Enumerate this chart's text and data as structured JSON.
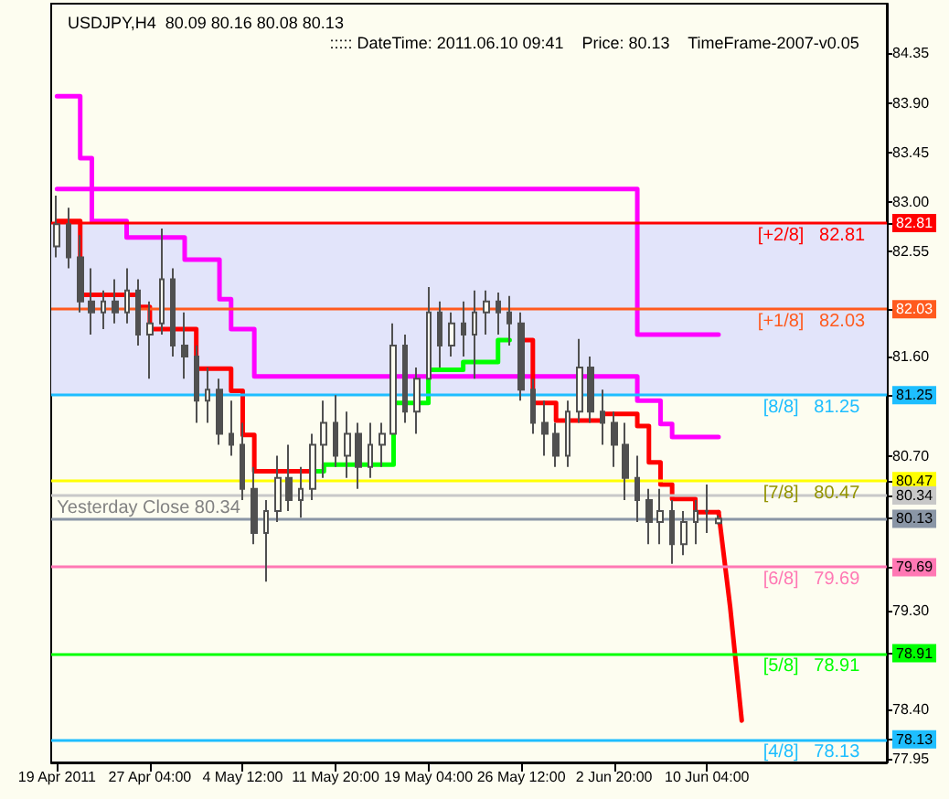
{
  "chart_data": {
    "type": "candlestick",
    "title": "USDJPY,H4  80.09 80.16 80.08 80.13",
    "subtitle": "::::: DateTime: 2011.06.10 09:41    Price: 80.13    TimeFrame-2007-v0.05",
    "categories": [
      "19 Apr 2011",
      null,
      null,
      null,
      null,
      null,
      null,
      null,
      "27 Apr 04:00",
      null,
      null,
      null,
      null,
      null,
      null,
      null,
      "4 May 12:00",
      null,
      null,
      null,
      null,
      null,
      null,
      null,
      "11 May 20:00",
      null,
      null,
      null,
      null,
      null,
      null,
      null,
      "19 May 04:00",
      null,
      null,
      null,
      null,
      null,
      null,
      null,
      "26 May 12:00",
      null,
      null,
      null,
      null,
      null,
      null,
      null,
      "2 Jun 20:00",
      null,
      null,
      null,
      null,
      null,
      null,
      null,
      "10 Jun 04:00",
      null,
      null,
      null,
      null,
      null,
      null,
      null,
      null,
      null,
      null,
      null,
      null,
      null,
      null,
      null
    ],
    "color": "#505050",
    "ohlc": [
      [
        82.6,
        83.06,
        82.5,
        82.8
      ],
      [
        82.8,
        82.95,
        82.4,
        82.5
      ],
      [
        82.5,
        82.7,
        82.0,
        82.1
      ],
      [
        82.1,
        82.4,
        81.8,
        82.0
      ],
      [
        82.0,
        82.2,
        81.85,
        82.1
      ],
      [
        82.1,
        82.3,
        81.9,
        82.0
      ],
      [
        82.0,
        82.4,
        81.9,
        82.2
      ],
      [
        82.2,
        82.3,
        81.7,
        81.8
      ],
      [
        81.8,
        82.1,
        81.4,
        81.9
      ],
      [
        81.9,
        82.76,
        81.8,
        82.3
      ],
      [
        82.3,
        82.4,
        81.6,
        81.7
      ],
      [
        81.7,
        82.0,
        81.4,
        81.6
      ],
      [
        81.6,
        81.7,
        81.0,
        81.2
      ],
      [
        81.2,
        81.5,
        81.0,
        81.3
      ],
      [
        81.3,
        81.4,
        80.8,
        80.9
      ],
      [
        80.9,
        81.2,
        80.7,
        80.8
      ],
      [
        80.8,
        81.0,
        80.3,
        80.4
      ],
      [
        80.4,
        80.6,
        79.9,
        80.0
      ],
      [
        80.0,
        80.3,
        79.56,
        80.2
      ],
      [
        80.2,
        80.7,
        80.1,
        80.5
      ],
      [
        80.5,
        80.8,
        80.2,
        80.3
      ],
      [
        80.3,
        80.6,
        80.14,
        80.4
      ],
      [
        80.4,
        80.9,
        80.3,
        80.8
      ],
      [
        80.8,
        81.2,
        80.5,
        81.0
      ],
      [
        81.0,
        81.25,
        80.6,
        80.7
      ],
      [
        80.7,
        81.1,
        80.5,
        80.9
      ],
      [
        80.9,
        81.0,
        80.4,
        80.6
      ],
      [
        80.6,
        81.0,
        80.5,
        80.8
      ],
      [
        80.8,
        81.0,
        80.6,
        80.9
      ],
      [
        80.9,
        81.9,
        80.9,
        81.7
      ],
      [
        81.7,
        81.8,
        81.0,
        81.1
      ],
      [
        81.1,
        81.5,
        80.9,
        81.4
      ],
      [
        81.4,
        82.23,
        81.4,
        82.0
      ],
      [
        82.0,
        82.1,
        81.5,
        81.7
      ],
      [
        81.7,
        82.0,
        81.6,
        81.9
      ],
      [
        81.9,
        82.1,
        81.6,
        81.8
      ],
      [
        81.8,
        82.2,
        81.4,
        82.0
      ],
      [
        82.0,
        82.2,
        81.8,
        82.1
      ],
      [
        82.1,
        82.18,
        81.8,
        82.0
      ],
      [
        82.0,
        82.15,
        81.7,
        81.9
      ],
      [
        81.9,
        82.0,
        81.2,
        81.3
      ],
      [
        81.3,
        81.4,
        80.9,
        81.0
      ],
      [
        81.0,
        81.2,
        80.7,
        80.9
      ],
      [
        80.9,
        81.0,
        80.6,
        80.7
      ],
      [
        80.7,
        81.2,
        80.6,
        81.1
      ],
      [
        81.1,
        81.76,
        81.0,
        81.5
      ],
      [
        81.5,
        81.6,
        81.0,
        81.1
      ],
      [
        81.1,
        81.3,
        80.8,
        81.0
      ],
      [
        81.0,
        81.1,
        80.6,
        80.8
      ],
      [
        80.8,
        81.0,
        80.3,
        80.5
      ],
      [
        80.5,
        80.7,
        80.1,
        80.3
      ],
      [
        80.3,
        80.4,
        79.9,
        80.1
      ],
      [
        80.1,
        80.4,
        79.9,
        80.2
      ],
      [
        80.2,
        80.3,
        79.72,
        79.9
      ],
      [
        79.9,
        80.2,
        79.8,
        80.1
      ],
      [
        80.1,
        80.3,
        79.9,
        80.2
      ],
      [
        80.2,
        80.44,
        80.0,
        80.2
      ],
      [
        80.09,
        80.16,
        80.08,
        80.13
      ],
      null,
      null,
      null,
      null,
      null,
      null,
      null,
      null,
      null,
      null,
      null,
      null,
      null,
      null
    ],
    "series": [
      {
        "type": "step",
        "color": "#ff00ff",
        "values": [
          83.96,
          83.96,
          83.4,
          82.83,
          82.83,
          82.83,
          82.68,
          82.68,
          82.68,
          82.68,
          82.68,
          82.48,
          82.48,
          82.48,
          82.12,
          81.85,
          81.85,
          81.42,
          81.42,
          81.42,
          81.42,
          81.42,
          81.42,
          81.42,
          81.42,
          81.42,
          81.42,
          81.42,
          81.42,
          81.42,
          81.42,
          81.42,
          81.42,
          81.42,
          81.42,
          81.42,
          81.42,
          81.42,
          81.42,
          81.42,
          81.42,
          81.42,
          81.42,
          81.42,
          81.42,
          81.42,
          81.42,
          81.42,
          81.42,
          81.42,
          81.2,
          81.2,
          80.99,
          80.87,
          80.87,
          80.87,
          80.87,
          80.87,
          null,
          null,
          null,
          null,
          null,
          null,
          null,
          null,
          null,
          null,
          null,
          null,
          null,
          null
        ]
      },
      {
        "type": "step",
        "color": "#ff00ff",
        "values": [
          83.12,
          83.12,
          83.12,
          83.12,
          83.12,
          83.12,
          83.12,
          83.12,
          83.12,
          83.12,
          83.12,
          83.12,
          83.12,
          83.12,
          83.12,
          83.12,
          83.12,
          83.12,
          83.12,
          83.12,
          83.12,
          83.12,
          83.12,
          83.12,
          83.12,
          83.12,
          83.12,
          83.12,
          83.12,
          83.12,
          83.12,
          83.12,
          83.12,
          83.12,
          83.12,
          83.12,
          83.12,
          83.12,
          83.12,
          83.12,
          83.12,
          83.12,
          83.12,
          83.12,
          83.12,
          83.12,
          83.12,
          83.12,
          83.12,
          83.12,
          81.8,
          81.8,
          81.8,
          81.8,
          81.8,
          81.8,
          81.8,
          81.8,
          null,
          null,
          null,
          null,
          null,
          null,
          null,
          null,
          null,
          null,
          null,
          null,
          null,
          null
        ]
      },
      {
        "type": "step",
        "color": "#ff0000",
        "values": [
          82.83,
          82.83,
          82.16,
          82.16,
          82.16,
          82.16,
          82.16,
          82.05,
          81.85,
          81.85,
          81.85,
          81.85,
          81.49,
          81.49,
          81.49,
          81.29,
          80.89,
          80.56,
          80.56,
          80.56,
          80.56,
          80.56,
          80.56,
          null,
          null,
          null,
          null,
          null,
          null,
          null,
          null,
          null,
          null,
          null,
          null,
          null,
          null,
          null,
          null,
          null,
          81.75,
          81.18,
          81.18,
          81.02,
          81.02,
          81.02,
          81.02,
          81.08,
          81.08,
          81.08,
          80.97,
          80.64,
          80.44,
          80.31,
          80.31,
          80.19,
          80.19,
          80.19,
          null,
          null,
          null,
          null,
          null,
          null,
          null,
          null,
          null,
          null,
          null,
          null,
          null,
          null
        ]
      },
      {
        "type": "step",
        "color": "#00ff00",
        "values": [
          null,
          null,
          null,
          null,
          null,
          null,
          null,
          null,
          null,
          null,
          null,
          null,
          null,
          null,
          null,
          null,
          null,
          null,
          null,
          null,
          null,
          null,
          80.56,
          80.62,
          80.62,
          80.62,
          80.62,
          80.62,
          80.62,
          81.18,
          81.18,
          81.18,
          81.48,
          81.48,
          81.48,
          81.55,
          81.55,
          81.55,
          81.75,
          81.75,
          null,
          null,
          null,
          null,
          null,
          null,
          null,
          null,
          null,
          null,
          null,
          null,
          null,
          null,
          null,
          null,
          null,
          null,
          null,
          null,
          null,
          null,
          null,
          null,
          null,
          null,
          null,
          null,
          null,
          null,
          null,
          null
        ]
      },
      {
        "type": "line",
        "color": "#ff0000",
        "values": [
          null,
          null,
          null,
          null,
          null,
          null,
          null,
          null,
          null,
          null,
          null,
          null,
          null,
          null,
          null,
          null,
          null,
          null,
          null,
          null,
          null,
          null,
          null,
          null,
          null,
          null,
          null,
          null,
          null,
          null,
          null,
          null,
          null,
          null,
          null,
          null,
          null,
          null,
          null,
          null,
          null,
          null,
          null,
          null,
          null,
          null,
          null,
          null,
          null,
          null,
          null,
          null,
          null,
          null,
          null,
          null,
          null,
          80.19,
          79.33,
          78.3,
          null,
          null,
          null,
          null,
          null,
          null,
          null,
          null,
          null,
          null,
          null,
          null
        ]
      }
    ],
    "ylim": [
      77.92,
      84.8
    ],
    "yticks": [
      84.35,
      {
        "value": 83.9,
        "label": "83.90"
      },
      83.45,
      {
        "value": 83.0,
        "label": "83.00"
      },
      82.55,
      {
        "value": 82.81,
        "label": "82.81"
      },
      {
        "value": 82.03,
        "label": "82.03"
      },
      {
        "value": 81.6,
        "label": "81.60"
      },
      {
        "value": 81.25,
        "label": "81.25"
      },
      {
        "value": 80.7,
        "label": "80.70"
      },
      {
        "value": 80.47,
        "label": "80.47"
      },
      {
        "value": 80.34,
        "label": "80.34"
      },
      {
        "value": 80.13,
        "label": "80.13"
      },
      {
        "value": 79.69,
        "label": "79.69"
      },
      {
        "value": 79.3,
        "label": "79.30"
      },
      {
        "value": 78.91,
        "label": "78.91"
      },
      {
        "value": 78.4,
        "label": "78.40"
      },
      {
        "value": 78.13,
        "label": "78.13"
      },
      77.95
    ],
    "bands": [
      {
        "axis": "y",
        "from": 81.25,
        "to": 82.81,
        "color": "#e2e4fa"
      }
    ],
    "ref_lines": [
      {
        "axis": "y",
        "value": 82.81,
        "label": "[+2/8]   82.81",
        "color": "#ff0000"
      },
      {
        "axis": "y",
        "value": 82.03,
        "label": "[+1/8]   82.03",
        "color": "#ff5a1e"
      },
      {
        "axis": "y",
        "value": 81.25,
        "label": "[8/8]   81.25",
        "color": "#1ebeff"
      },
      {
        "axis": "y",
        "value": 80.47,
        "label": "[7/8]   80.47",
        "color": "#ffff00"
      },
      {
        "axis": "y",
        "value": 80.34,
        "label": "Yesterday Close 80.34",
        "color": "#c8c8c8"
      },
      {
        "axis": "y",
        "value": 80.13,
        "label": null,
        "color": "#8a96a6"
      },
      {
        "axis": "y",
        "value": 79.69,
        "label": "[6/8]   79.69",
        "color": "#ff78b4"
      },
      {
        "axis": "y",
        "value": 78.91,
        "label": "[5/8]   78.91",
        "color": "#00ff00"
      },
      {
        "axis": "y",
        "value": 78.13,
        "label": "[4/8]   78.13",
        "color": "#1ebeff"
      }
    ],
    "grid": false
  }
}
